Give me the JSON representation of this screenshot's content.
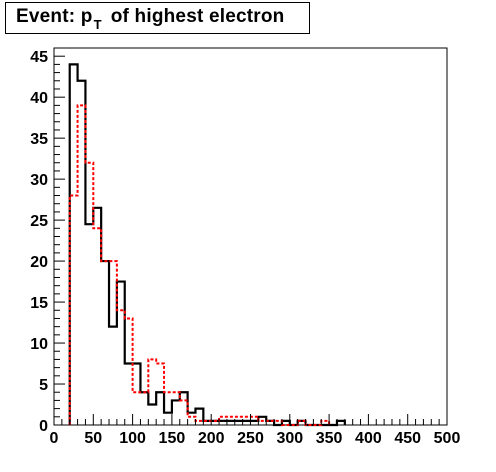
{
  "title": {
    "prefix": "Event: p",
    "subscript": "T",
    "suffix": "of highest electron"
  },
  "colors": {
    "background": "#ffffff",
    "axes": "#000000",
    "series_black": "#000000",
    "series_red": "#ff0000"
  },
  "chart_data": {
    "type": "histogram",
    "title": "Event: p_T of highest electron",
    "xlabel": "",
    "ylabel": "",
    "xlim": [
      0,
      500
    ],
    "ylim": [
      0,
      46
    ],
    "bin_width": 10,
    "x_ticks": [
      0,
      50,
      100,
      150,
      200,
      250,
      300,
      350,
      400,
      450,
      500
    ],
    "y_ticks": [
      0,
      5,
      10,
      15,
      20,
      25,
      30,
      35,
      40,
      45
    ],
    "grid": false,
    "legend": "none",
    "series": [
      {
        "style": "solid",
        "color": "#000000",
        "bin_edges": [
          20,
          30,
          40,
          50,
          60,
          70,
          80,
          90,
          100,
          110,
          120,
          130,
          140,
          150,
          160,
          170,
          180,
          190,
          200,
          210,
          220,
          230,
          240,
          250,
          260,
          270,
          280,
          290,
          300,
          310,
          320,
          330,
          340,
          350,
          360,
          370
        ],
        "values": [
          44,
          42,
          24.5,
          26.5,
          20,
          12,
          17.5,
          7.5,
          7.5,
          4,
          2.5,
          4,
          1.5,
          3,
          4,
          1.5,
          2,
          0.5,
          0.5,
          0.5,
          0.5,
          0.5,
          0.5,
          0.5,
          1,
          0.5,
          0,
          0.5,
          0,
          0.5,
          0,
          0,
          0,
          0,
          0.5
        ]
      },
      {
        "style": "dashed",
        "color": "#ff0000",
        "bin_edges": [
          20,
          30,
          40,
          50,
          60,
          70,
          80,
          90,
          100,
          110,
          120,
          130,
          140,
          150,
          160,
          170,
          180,
          190,
          200,
          210,
          220,
          230,
          240,
          250,
          260,
          270,
          280,
          290,
          300,
          310,
          320,
          330,
          340,
          350
        ],
        "values": [
          28,
          39,
          32,
          24,
          20,
          20,
          14,
          13,
          4,
          4,
          8,
          7.5,
          4,
          4,
          3,
          1,
          0.5,
          0.5,
          0.5,
          1,
          1,
          1,
          1,
          1,
          0.5,
          0.5,
          0.5,
          0,
          0,
          0.5,
          0,
          0,
          0.5
        ]
      }
    ]
  }
}
